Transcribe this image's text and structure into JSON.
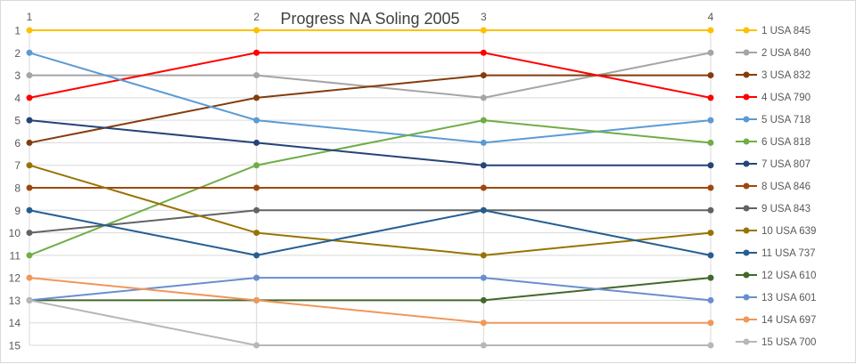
{
  "chart_data": {
    "type": "line",
    "title": "Progress NA Soling 2005",
    "x": [
      1,
      2,
      3,
      4
    ],
    "x_tick_labels": [
      "1",
      "2",
      "3",
      "4"
    ],
    "y_tick_labels": [
      "1",
      "2",
      "3",
      "4",
      "5",
      "6",
      "7",
      "8",
      "9",
      "10",
      "11",
      "12",
      "13",
      "14",
      "15"
    ],
    "ylim": [
      1,
      15
    ],
    "y_reversed": true,
    "grid": true,
    "legend_position": "right",
    "series": [
      {
        "name": "1 USA 845",
        "color": "#FFC000",
        "values": [
          1,
          1,
          1,
          1
        ]
      },
      {
        "name": "2 USA 840",
        "color": "#A5A5A5",
        "values": [
          3,
          3,
          4,
          2
        ]
      },
      {
        "name": "3 USA 832",
        "color": "#843C0C",
        "values": [
          6,
          4,
          3,
          3
        ]
      },
      {
        "name": "4 USA 790",
        "color": "#FF0000",
        "values": [
          4,
          2,
          2,
          4
        ]
      },
      {
        "name": "5 USA 718",
        "color": "#5B9BD5",
        "values": [
          2,
          5,
          6,
          5
        ]
      },
      {
        "name": "6 USA 818",
        "color": "#70AD47",
        "values": [
          11,
          7,
          5,
          6
        ]
      },
      {
        "name": "7 USA 807",
        "color": "#264478",
        "values": [
          5,
          6,
          7,
          7
        ]
      },
      {
        "name": "8 USA 846",
        "color": "#9E480E",
        "values": [
          8,
          8,
          8,
          8
        ]
      },
      {
        "name": "9 USA 843",
        "color": "#636363",
        "values": [
          10,
          9,
          9,
          9
        ]
      },
      {
        "name": "10 USA 639",
        "color": "#997300",
        "values": [
          7,
          10,
          11,
          10
        ]
      },
      {
        "name": "11 USA 737",
        "color": "#255E91",
        "values": [
          9,
          11,
          9,
          11
        ]
      },
      {
        "name": "12 USA 610",
        "color": "#43682B",
        "values": [
          13,
          13,
          13,
          12
        ]
      },
      {
        "name": "13 USA 601",
        "color": "#698ED0",
        "values": [
          13,
          12,
          12,
          13
        ]
      },
      {
        "name": "14 USA 697",
        "color": "#F1975A",
        "values": [
          12,
          13,
          14,
          14
        ]
      },
      {
        "name": "15 USA 700",
        "color": "#B7B7B7",
        "values": [
          13,
          15,
          15,
          15
        ]
      }
    ]
  }
}
